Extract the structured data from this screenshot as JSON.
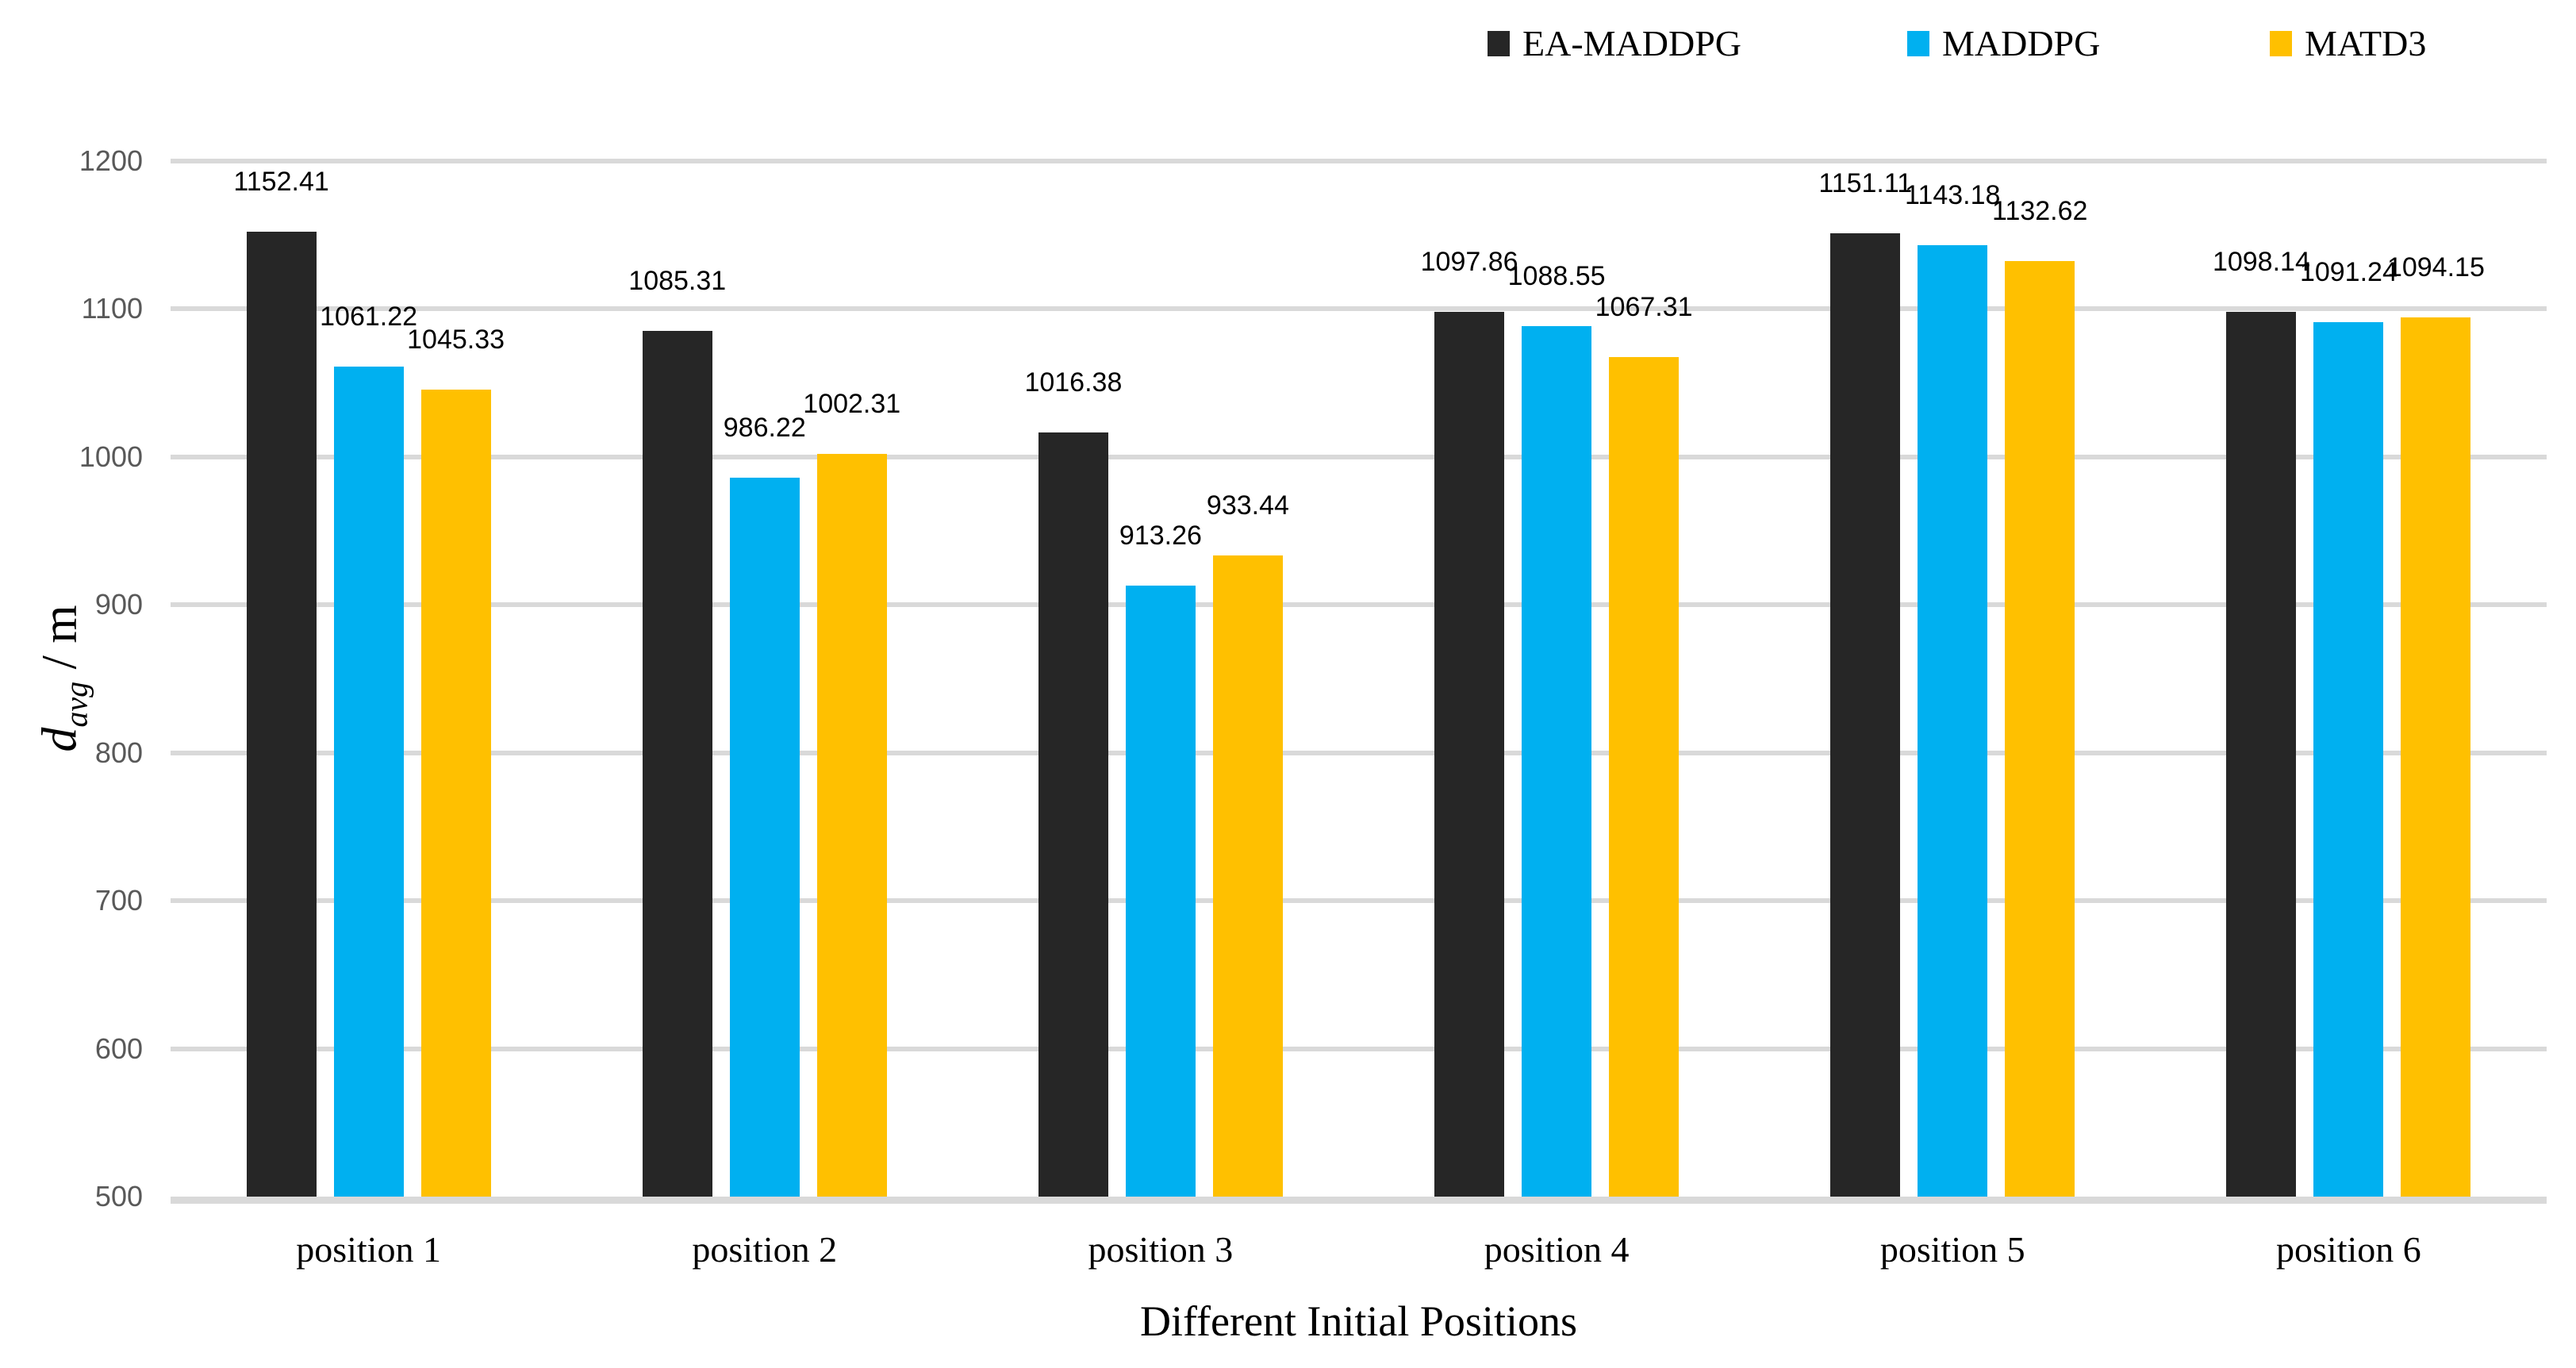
{
  "chart_data": {
    "type": "bar",
    "title": "",
    "categories": [
      "position 1",
      "position 2",
      "position 3",
      "position 4",
      "position 5",
      "position 6"
    ],
    "series": [
      {
        "name": "EA-MADDPG",
        "color": "#262626",
        "values": [
          1152.41,
          1085.31,
          1016.38,
          1097.86,
          1151.11,
          1098.14
        ]
      },
      {
        "name": "MADDPG",
        "color": "#00B0F0",
        "values": [
          1061.22,
          986.22,
          913.26,
          1088.55,
          1143.18,
          1091.24
        ]
      },
      {
        "name": "MATD3",
        "color": "#FFC000",
        "values": [
          1045.33,
          1002.31,
          933.44,
          1067.31,
          1132.62,
          1094.15
        ]
      }
    ],
    "xlabel": "Different Initial Positions",
    "ylabel": "d_avg / m",
    "ylabel_parts": {
      "symbol": "d",
      "subscript": "avg",
      "suffix": " / m"
    },
    "ylim": [
      500,
      1200
    ],
    "yticks": [
      500,
      600,
      700,
      800,
      900,
      1000,
      1100,
      1200
    ],
    "grid": "horizontal",
    "legend_position": "top-right",
    "data_labels_decimals": 2,
    "colors": {
      "grid": "#D9D9D9",
      "axis_line": "#D9D9D9",
      "tick_label": "#595959",
      "data_label": "#000000",
      "background": "#FFFFFF"
    }
  }
}
